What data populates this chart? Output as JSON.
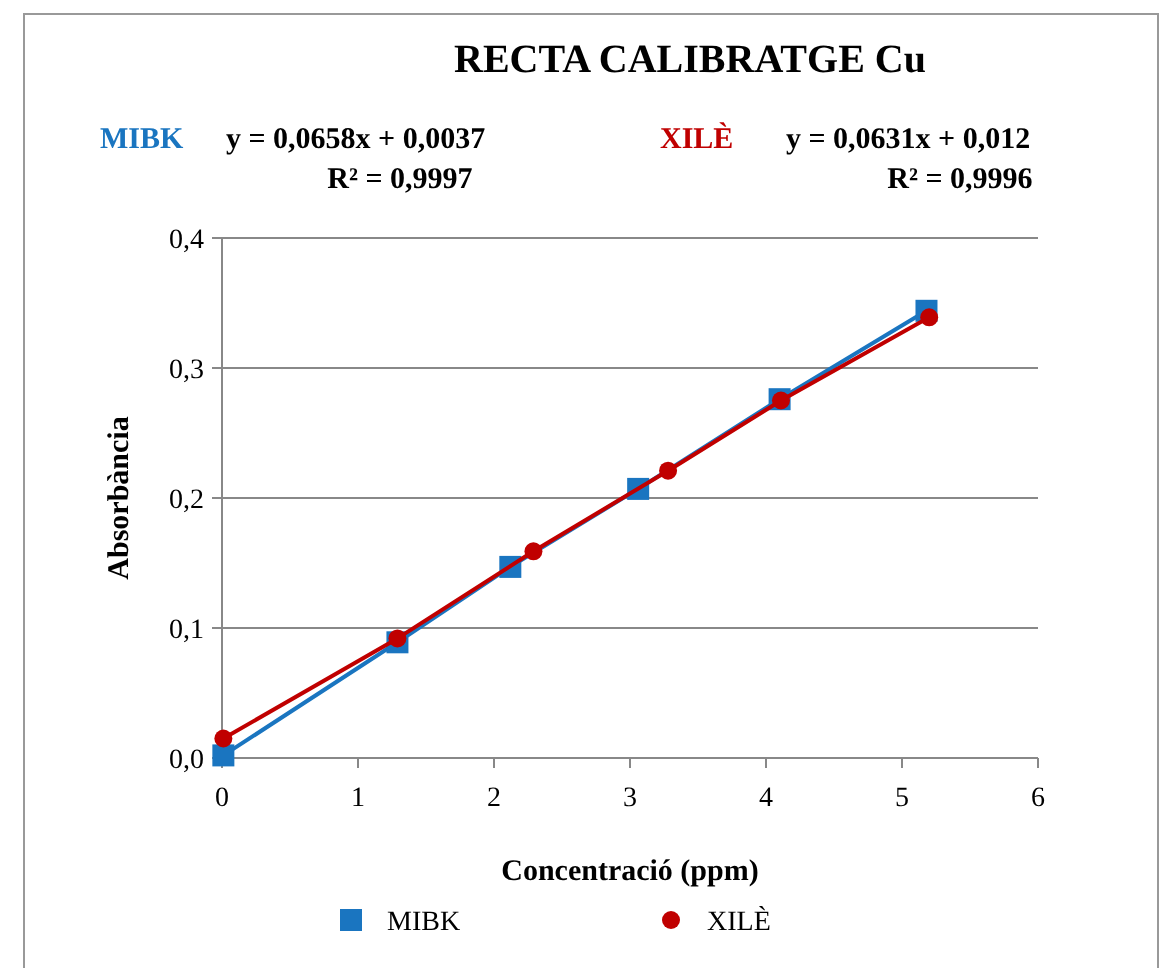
{
  "chart_data": {
    "type": "line",
    "title": "RECTA CALIBRATGE Cu",
    "xlabel": "Concentració (ppm)",
    "ylabel": "Absorbància",
    "annotations": [
      "y = 0,0658x + 0,0037",
      "R² = 0,9997",
      "y = 0,0631x + 0,012",
      "R² = 0,9996"
    ],
    "series": [
      {
        "name": "MIBK",
        "color": "#1a75c0",
        "marker": "square",
        "x": [
          0.01,
          1.29,
          2.12,
          3.06,
          4.1,
          5.18
        ],
        "values": [
          0.002,
          0.089,
          0.147,
          0.207,
          0.276,
          0.344
        ]
      },
      {
        "name": "XILÈ",
        "color": "#c00000",
        "marker": "circle",
        "x": [
          0.01,
          1.29,
          2.29,
          3.28,
          4.11,
          5.2
        ],
        "values": [
          0.015,
          0.092,
          0.159,
          0.221,
          0.275,
          0.339
        ]
      }
    ],
    "xlim": [
      0,
      6
    ],
    "xticks": [
      0,
      1,
      2,
      3,
      4,
      5,
      6
    ],
    "ylim": [
      0,
      0.4
    ],
    "yticks": [
      {
        "value": 0,
        "label": "0,0"
      },
      {
        "value": 0.1,
        "label": "0,1"
      },
      {
        "value": 0.2,
        "label": "0,2"
      },
      {
        "value": 0.3,
        "label": "0,3"
      },
      {
        "value": 0.4,
        "label": "0,4"
      }
    ],
    "grid": "y",
    "legend": "bottom",
    "line_style": "solid"
  }
}
